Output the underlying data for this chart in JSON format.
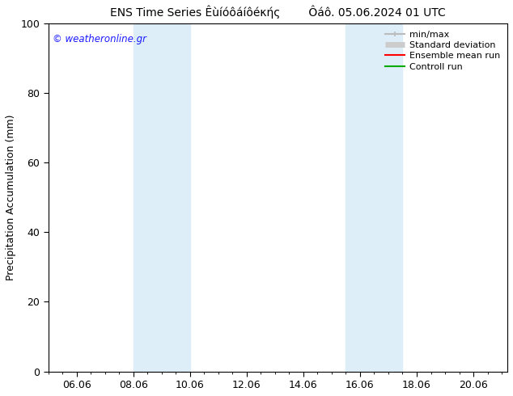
{
  "title": "ENS Time Series Êùíóôáíôéκής        Ôáô. 05.06.2024 01 UTC",
  "ylabel": "Precipitation Accumulation (mm)",
  "watermark": "© weatheronline.gr",
  "watermark_color": "#1a1aff",
  "ylim": [
    0,
    100
  ],
  "yticks": [
    0,
    20,
    40,
    60,
    80,
    100
  ],
  "xlim_start": 5.0,
  "xlim_end": 21.2,
  "xtick_labels": [
    "06.06",
    "08.06",
    "10.06",
    "12.06",
    "14.06",
    "16.06",
    "18.06",
    "20.06"
  ],
  "xtick_positions": [
    6,
    8,
    10,
    12,
    14,
    16,
    18,
    20
  ],
  "shaded_regions": [
    {
      "x_start": 8.0,
      "x_end": 10.0,
      "color": "#ddeef8"
    },
    {
      "x_start": 15.5,
      "x_end": 17.5,
      "color": "#ddeef8"
    }
  ],
  "legend_items": [
    {
      "label": "min/max",
      "color": "#bbbbbb",
      "lw": 1.5
    },
    {
      "label": "Standard deviation",
      "color": "#cccccc",
      "lw": 5
    },
    {
      "label": "Ensemble mean run",
      "color": "#ff0000",
      "lw": 1.5
    },
    {
      "label": "Controll run",
      "color": "#00aa00",
      "lw": 1.5
    }
  ],
  "bg_color": "#ffffff",
  "plot_bg_color": "#ffffff",
  "title_fontsize": 10,
  "label_fontsize": 9,
  "tick_fontsize": 9,
  "legend_fontsize": 8
}
